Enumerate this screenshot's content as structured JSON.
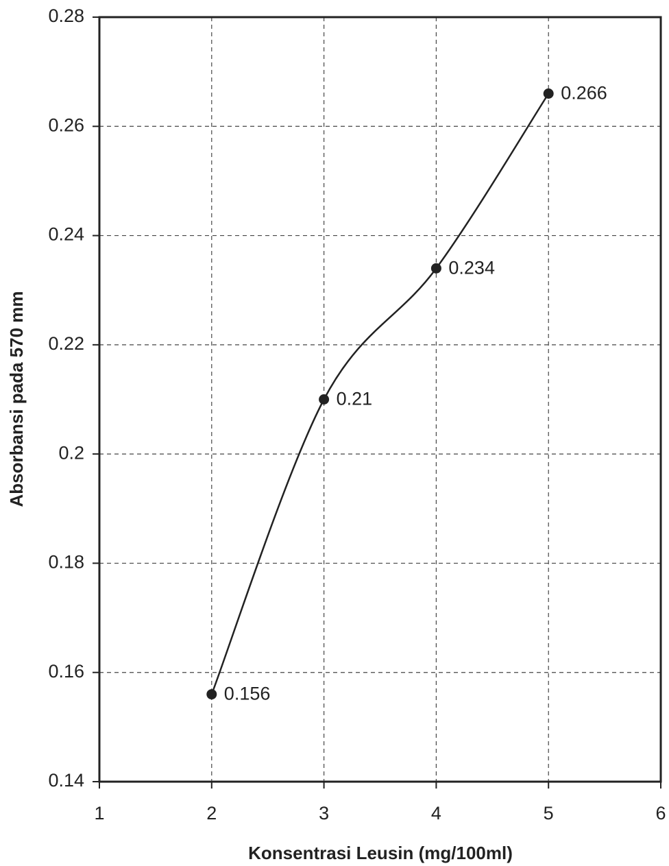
{
  "chart_data": {
    "type": "line",
    "x_label": "Konsentrasi Leusin (mg/100ml)",
    "y_label": "Absorbansi pada 570 mm",
    "x": [
      2,
      3,
      4,
      5
    ],
    "series": [
      {
        "color": "#222222",
        "values": [
          0.156,
          0.21,
          0.234,
          0.266
        ]
      }
    ],
    "xlim": [
      1,
      6
    ],
    "ylim": [
      0.14,
      0.28
    ],
    "xticks": [
      1,
      2,
      3,
      4,
      5,
      6
    ],
    "yticks": [
      0.14,
      0.16,
      0.18,
      0.2,
      0.22,
      0.24,
      0.26,
      0.28
    ],
    "grid": true,
    "smooth": true,
    "data_labels": true
  }
}
